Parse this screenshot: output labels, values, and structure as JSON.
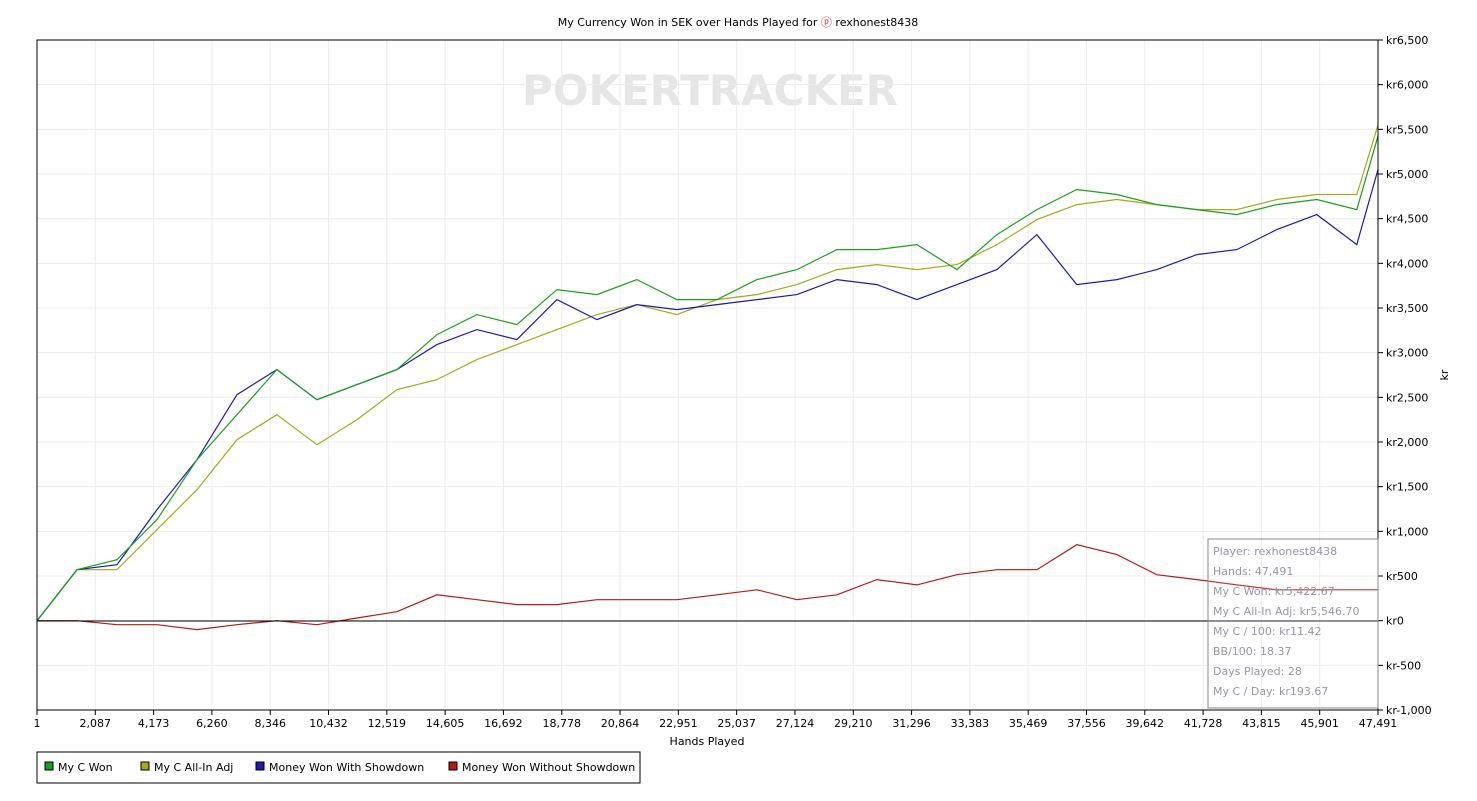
{
  "chart_data": {
    "type": "line",
    "title": "My Currency Won in SEK over Hands Played for",
    "player": "rexhonest8438",
    "watermark": "POKERTRACKER",
    "xlabel": "Hands Played",
    "ylabel": "kr",
    "xlim": [
      1,
      47491
    ],
    "ylim": [
      -1000,
      6500
    ],
    "x_ticks": [
      "1",
      "2,087",
      "4,173",
      "6,260",
      "8,346",
      "10,432",
      "12,519",
      "14,605",
      "16,692",
      "18,778",
      "20,864",
      "22,951",
      "25,037",
      "27,124",
      "29,210",
      "31,296",
      "33,383",
      "35,469",
      "37,556",
      "39,642",
      "41,728",
      "43,815",
      "45,901",
      "47,491"
    ],
    "y_ticks": [
      {
        "value": 6500,
        "label": "kr6,500"
      },
      {
        "value": 6000,
        "label": "kr6,000"
      },
      {
        "value": 5500,
        "label": "kr5,500"
      },
      {
        "value": 5000,
        "label": "kr5,000"
      },
      {
        "value": 4500,
        "label": "kr4,500"
      },
      {
        "value": 4000,
        "label": "kr4,000"
      },
      {
        "value": 3500,
        "label": "kr3,500"
      },
      {
        "value": 3000,
        "label": "kr3,000"
      },
      {
        "value": 2500,
        "label": "kr2,500"
      },
      {
        "value": 2000,
        "label": "kr2,000"
      },
      {
        "value": 1500,
        "label": "kr1,500"
      },
      {
        "value": 1000,
        "label": "kr1,000"
      },
      {
        "value": 500,
        "label": "kr500"
      },
      {
        "value": 0,
        "label": "kr0"
      },
      {
        "value": -500,
        "label": "kr-500"
      },
      {
        "value": -1000,
        "label": "kr-1,000"
      }
    ],
    "grid": true,
    "legend_position": "bottom-left",
    "x": [
      1,
      1416,
      2833,
      4249,
      5666,
      7082,
      8498,
      9915,
      11331,
      12748,
      14164,
      15580,
      16997,
      18413,
      19830,
      21246,
      22662,
      24079,
      25495,
      26912,
      28328,
      29744,
      31161,
      32577,
      33994,
      35410,
      36826,
      38243,
      39659,
      41076,
      42492,
      43908,
      45325,
      46741,
      47491
    ],
    "series": [
      {
        "name": "My C Won",
        "color": "#1aa11a",
        "values": [
          0,
          571,
          683,
          1131,
          1802,
          2306,
          2810,
          2474,
          2642,
          2810,
          3202,
          3426,
          3314,
          3706,
          3650,
          3818,
          3594,
          3594,
          3818,
          3930,
          4154,
          4154,
          4210,
          3930,
          4322,
          4602,
          4826,
          4770,
          4658,
          4602,
          4546,
          4658,
          4714,
          4602,
          5423
        ]
      },
      {
        "name": "My C All-In Adj",
        "color": "#a8a81a",
        "values": [
          0,
          571,
          571,
          1019,
          1466,
          2026,
          2306,
          1970,
          2250,
          2586,
          2698,
          2922,
          3090,
          3258,
          3426,
          3538,
          3426,
          3594,
          3650,
          3762,
          3930,
          3986,
          3930,
          3986,
          4210,
          4490,
          4658,
          4714,
          4658,
          4602,
          4602,
          4714,
          4770,
          4770,
          5547
        ]
      },
      {
        "name": "Money Won With Showdown",
        "color": "#1a1ab4",
        "values": [
          0,
          571,
          627,
          1243,
          1802,
          2530,
          2810,
          2474,
          2642,
          2810,
          3090,
          3258,
          3146,
          3594,
          3370,
          3538,
          3482,
          3538,
          3594,
          3650,
          3818,
          3762,
          3594,
          3762,
          3930,
          4322,
          3762,
          3818,
          3930,
          4098,
          4154,
          4378,
          4546,
          4210,
          5050
        ]
      },
      {
        "name": "Money Won Without Showdown",
        "color": "#b41a1a",
        "values": [
          0,
          0,
          -45,
          -45,
          -100,
          -45,
          0,
          -45,
          30,
          100,
          290,
          235,
          180,
          180,
          235,
          235,
          235,
          290,
          345,
          235,
          290,
          460,
          400,
          515,
          570,
          570,
          850,
          740,
          515,
          460,
          400,
          345,
          345,
          345,
          345
        ]
      }
    ],
    "tooltip": [
      "Player: rexhonest8438",
      "Hands: 47,491",
      "My C Won: kr5,422.67",
      "My C All-In Adj: kr5,546.70",
      "My C / 100: kr11.42",
      "BB/100: 18.37",
      "Days Played: 28",
      "My C / Day: kr193.67"
    ]
  }
}
